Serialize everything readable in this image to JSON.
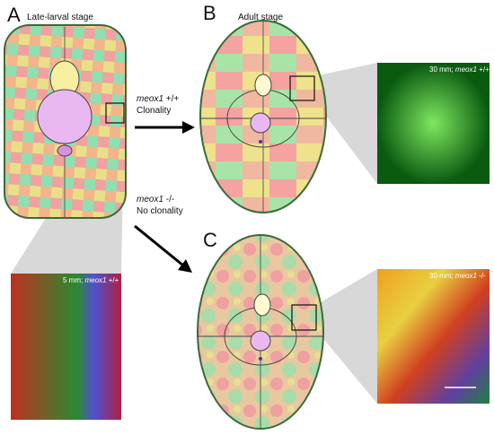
{
  "panels": [
    {
      "letter": "A",
      "title": "Late-larval stage"
    },
    {
      "letter": "B",
      "title": "Adult stage"
    },
    {
      "letter": "C"
    }
  ],
  "arrows": [
    {
      "gene": "meox1",
      "genotype": "+/+",
      "label": "Clonality"
    },
    {
      "gene": "meox1",
      "genotype": "-/-",
      "label": "No clonality"
    }
  ],
  "insets": [
    {
      "prefix": "5 mm; ",
      "gene": "meox1",
      "genotype": "+/+"
    },
    {
      "prefix": "30 mm; ",
      "gene": "meox1",
      "genotype": "+/+"
    },
    {
      "prefix": "30 mm; ",
      "gene": "meox1",
      "genotype": "-/-"
    }
  ]
}
